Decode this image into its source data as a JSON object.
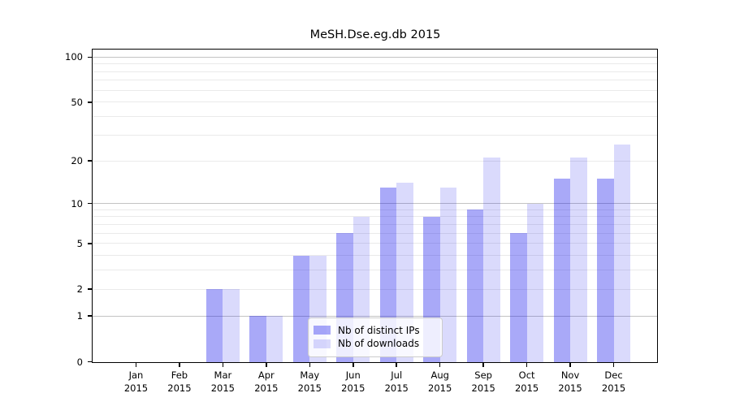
{
  "chart_data": {
    "type": "bar",
    "title": "MeSH.Dse.eg.db 2015",
    "year": "2015",
    "months": [
      "Jan",
      "Feb",
      "Mar",
      "Apr",
      "May",
      "Jun",
      "Jul",
      "Aug",
      "Sep",
      "Oct",
      "Nov",
      "Dec"
    ],
    "series": [
      {
        "name": "Nb of distinct IPs",
        "color": "rgba(10,10,235,0.35)",
        "values": [
          0,
          0,
          2,
          1,
          4,
          6,
          13,
          8,
          9,
          6,
          15,
          15
        ]
      },
      {
        "name": "Nb of downloads",
        "color": "rgba(10,10,235,0.15)",
        "values": [
          0,
          0,
          2,
          1,
          4,
          8,
          14,
          13,
          21,
          10,
          21,
          26
        ]
      }
    ],
    "y_scale": "log1p",
    "y_axis": {
      "min": 0,
      "max": 113,
      "labeled_ticks": [
        0,
        1,
        2,
        5,
        10,
        20,
        50,
        100
      ],
      "major_gridlines": [
        1,
        10,
        100
      ],
      "minor_gridlines": [
        2,
        3,
        4,
        5,
        6,
        7,
        8,
        9,
        20,
        30,
        40,
        50,
        60,
        70,
        80,
        90
      ]
    },
    "legend_position": "lower center-left inside plot",
    "grid": "on",
    "colors": {
      "bar_distinct_ips": "rgba(10,10,235,0.35)",
      "bar_downloads": "rgba(10,10,235,0.15)",
      "major_grid": "#c3c3c3",
      "minor_grid": "#eaeaea",
      "spine": "#000000",
      "legend_border": "#cccccc"
    }
  }
}
